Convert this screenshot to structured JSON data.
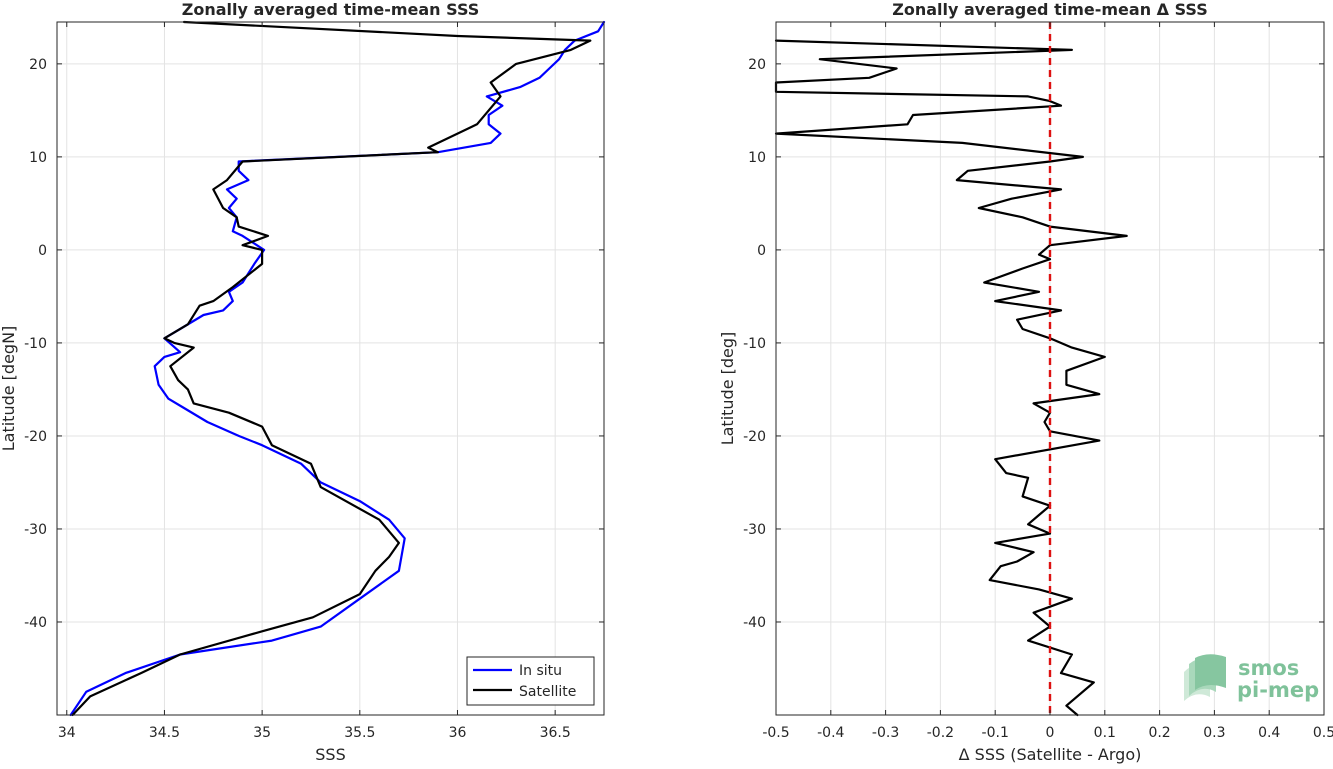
{
  "chart_data": [
    {
      "type": "line",
      "title": "Zonally averaged time-mean SSS",
      "xlabel": "SSS",
      "ylabel": "Latitude [degN]",
      "xlim": [
        33.95,
        36.75
      ],
      "ylim": [
        -50,
        24.5
      ],
      "xticks": [
        34,
        34.5,
        35,
        35.5,
        36,
        36.5
      ],
      "yticks": [
        -40,
        -30,
        -20,
        -10,
        0,
        10,
        20
      ],
      "grid": true,
      "legend": "bottom-right",
      "series": [
        {
          "name": "In situ",
          "color": "#0000ff",
          "points": [
            [
              34.02,
              -50
            ],
            [
              34.1,
              -47.5
            ],
            [
              34.3,
              -45.5
            ],
            [
              34.58,
              -43.5
            ],
            [
              35.05,
              -42
            ],
            [
              35.3,
              -40.5
            ],
            [
              35.5,
              -37.5
            ],
            [
              35.7,
              -34.5
            ],
            [
              35.73,
              -31
            ],
            [
              35.65,
              -29
            ],
            [
              35.5,
              -27
            ],
            [
              35.3,
              -25
            ],
            [
              35.2,
              -23
            ],
            [
              35.0,
              -21
            ],
            [
              34.88,
              -20
            ],
            [
              34.72,
              -18.5
            ],
            [
              34.6,
              -17
            ],
            [
              34.52,
              -16
            ],
            [
              34.47,
              -14.5
            ],
            [
              34.45,
              -12.5
            ],
            [
              34.5,
              -11.5
            ],
            [
              34.58,
              -11
            ],
            [
              34.5,
              -9.5
            ],
            [
              34.58,
              -8.5
            ],
            [
              34.7,
              -7
            ],
            [
              34.8,
              -6.5
            ],
            [
              34.85,
              -5.5
            ],
            [
              34.83,
              -4.5
            ],
            [
              34.9,
              -3.5
            ],
            [
              34.96,
              -1.5
            ],
            [
              35.01,
              0
            ],
            [
              34.9,
              1.5
            ],
            [
              34.85,
              2
            ],
            [
              34.87,
              3.5
            ],
            [
              34.83,
              4.5
            ],
            [
              34.87,
              5.5
            ],
            [
              34.82,
              6.5
            ],
            [
              34.93,
              7.5
            ],
            [
              34.88,
              8.5
            ],
            [
              34.88,
              9.5
            ],
            [
              35.9,
              10.5
            ],
            [
              36.17,
              11.5
            ],
            [
              36.22,
              12.5
            ],
            [
              36.16,
              13.5
            ],
            [
              36.16,
              14.5
            ],
            [
              36.23,
              15.5
            ],
            [
              36.15,
              16.5
            ],
            [
              36.32,
              17.5
            ],
            [
              36.42,
              18.5
            ],
            [
              36.47,
              19.5
            ],
            [
              36.52,
              20.5
            ],
            [
              36.55,
              21.5
            ],
            [
              36.6,
              22.5
            ],
            [
              36.72,
              23.5
            ],
            [
              36.78,
              24.5
            ]
          ]
        },
        {
          "name": "Satellite",
          "color": "#000000",
          "points": [
            [
              34.03,
              -50
            ],
            [
              34.12,
              -48
            ],
            [
              34.38,
              -45.5
            ],
            [
              34.58,
              -43.5
            ],
            [
              35.0,
              -41
            ],
            [
              35.26,
              -39.5
            ],
            [
              35.5,
              -37
            ],
            [
              35.58,
              -34.5
            ],
            [
              35.65,
              -33
            ],
            [
              35.7,
              -31.5
            ],
            [
              35.6,
              -29
            ],
            [
              35.3,
              -25.5
            ],
            [
              35.25,
              -23
            ],
            [
              35.05,
              -21
            ],
            [
              35.0,
              -19
            ],
            [
              34.83,
              -17.5
            ],
            [
              34.65,
              -16.5
            ],
            [
              34.62,
              -15
            ],
            [
              34.57,
              -14
            ],
            [
              34.53,
              -12.5
            ],
            [
              34.65,
              -10.5
            ],
            [
              34.55,
              -10
            ],
            [
              34.5,
              -9.5
            ],
            [
              34.62,
              -8
            ],
            [
              34.68,
              -6
            ],
            [
              34.75,
              -5.5
            ],
            [
              34.85,
              -4
            ],
            [
              35.0,
              -1.5
            ],
            [
              35.0,
              0
            ],
            [
              34.9,
              0.5
            ],
            [
              35.03,
              1.5
            ],
            [
              34.88,
              2.5
            ],
            [
              34.87,
              3.5
            ],
            [
              34.8,
              4.5
            ],
            [
              34.75,
              6.5
            ],
            [
              34.82,
              7.5
            ],
            [
              34.9,
              9.5
            ],
            [
              35.9,
              10.5
            ],
            [
              35.85,
              11
            ],
            [
              36.1,
              13.5
            ],
            [
              36.22,
              16.5
            ],
            [
              36.17,
              18
            ],
            [
              36.3,
              20
            ],
            [
              36.58,
              21.5
            ],
            [
              36.68,
              22.5
            ],
            [
              36.0,
              23
            ],
            [
              34.6,
              24.5
            ]
          ]
        }
      ]
    },
    {
      "type": "line",
      "title": "Zonally averaged time-mean Δ SSS",
      "xlabel": "Δ SSS (Satellite - Argo)",
      "ylabel": "Latitude [deg]",
      "xlim": [
        -0.5,
        0.5
      ],
      "ylim": [
        -50,
        24.5
      ],
      "xticks": [
        -0.5,
        -0.4,
        -0.3,
        -0.2,
        -0.1,
        0,
        0.1,
        0.2,
        0.3,
        0.4,
        0.5
      ],
      "yticks": [
        -40,
        -30,
        -20,
        -10,
        0,
        10,
        20
      ],
      "grid": true,
      "reference_line": {
        "x": 0,
        "color": "#dd1111",
        "style": "dashed"
      },
      "series": [
        {
          "name": "",
          "color": "#000000",
          "points": [
            [
              0.05,
              -50
            ],
            [
              0.03,
              -49
            ],
            [
              0.08,
              -46.5
            ],
            [
              0.02,
              -45.5
            ],
            [
              0.04,
              -43.5
            ],
            [
              -0.04,
              -42
            ],
            [
              0.0,
              -40.5
            ],
            [
              -0.03,
              -39
            ],
            [
              0.04,
              -37.5
            ],
            [
              -0.02,
              -36.5
            ],
            [
              -0.11,
              -35.5
            ],
            [
              -0.09,
              -34
            ],
            [
              -0.06,
              -33.5
            ],
            [
              -0.03,
              -32.5
            ],
            [
              -0.1,
              -31.5
            ],
            [
              0.0,
              -30.5
            ],
            [
              -0.04,
              -29.5
            ],
            [
              -0.02,
              -28.5
            ],
            [
              0.0,
              -27.5
            ],
            [
              -0.05,
              -26.5
            ],
            [
              -0.04,
              -24.5
            ],
            [
              -0.08,
              -24
            ],
            [
              -0.1,
              -22.5
            ],
            [
              0.09,
              -20.5
            ],
            [
              0.0,
              -19.5
            ],
            [
              -0.01,
              -18.5
            ],
            [
              0.0,
              -17.5
            ],
            [
              -0.03,
              -16.5
            ],
            [
              0.09,
              -15.5
            ],
            [
              0.03,
              -14.5
            ],
            [
              0.03,
              -13
            ],
            [
              0.1,
              -11.5
            ],
            [
              0.04,
              -10.5
            ],
            [
              0.0,
              -9.5
            ],
            [
              -0.05,
              -8.5
            ],
            [
              -0.06,
              -7.5
            ],
            [
              0.02,
              -6.5
            ],
            [
              -0.1,
              -5.5
            ],
            [
              -0.02,
              -4.5
            ],
            [
              -0.12,
              -3.5
            ],
            [
              -0.05,
              -2
            ],
            [
              0.0,
              -1
            ],
            [
              -0.02,
              -0.5
            ],
            [
              0.0,
              0.5
            ],
            [
              0.14,
              1.5
            ],
            [
              0.0,
              2.5
            ],
            [
              -0.05,
              3.5
            ],
            [
              -0.13,
              4.5
            ],
            [
              -0.07,
              5.5
            ],
            [
              0.02,
              6.5
            ],
            [
              -0.17,
              7.5
            ],
            [
              -0.15,
              8.5
            ],
            [
              0.0,
              9.5
            ],
            [
              0.06,
              10
            ],
            [
              -0.16,
              11.5
            ],
            [
              -0.5,
              12.5
            ],
            [
              -0.26,
              13.5
            ],
            [
              -0.25,
              14.5
            ],
            [
              0.02,
              15.5
            ],
            [
              0.0,
              16
            ],
            [
              -0.04,
              16.5
            ],
            [
              -0.5,
              17
            ],
            [
              -0.5,
              18
            ],
            [
              -0.33,
              18.5
            ],
            [
              -0.28,
              19.5
            ],
            [
              -0.42,
              20.5
            ],
            [
              0.04,
              21.5
            ],
            [
              -0.5,
              22.5
            ]
          ]
        }
      ]
    }
  ],
  "legend": {
    "items": [
      "In situ",
      "Satellite"
    ]
  },
  "logo": {
    "line1": "smos",
    "line2": "pi-mep"
  }
}
